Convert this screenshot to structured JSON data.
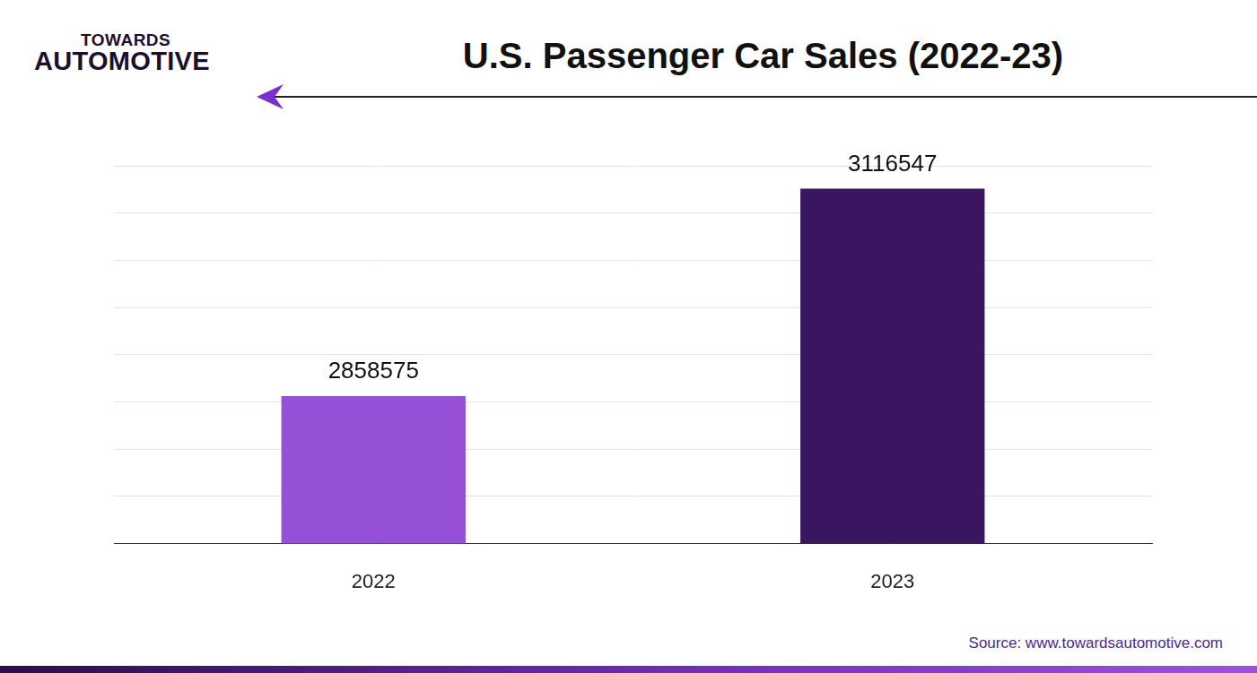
{
  "page": {
    "logo": [
      "TOWARDS",
      "AUTOMOTIVE"
    ],
    "source": "Source: www.towardsautomotive.com"
  },
  "chart_data": {
    "type": "bar",
    "title": "U.S. Passenger Car Sales (2022-23)",
    "categories": [
      "2022",
      "2023"
    ],
    "values": [
      2858575,
      3116547
    ],
    "colors": [
      "#9650d8",
      "#3a1560"
    ],
    "ylim": [
      2675000,
      3145000
    ],
    "yticks": [
      2675000,
      2733750,
      2792500,
      2851250,
      2910000,
      2968750,
      3027500,
      3086250,
      3145000
    ],
    "grid": true,
    "data_labels": true,
    "tick_labels": "x"
  }
}
